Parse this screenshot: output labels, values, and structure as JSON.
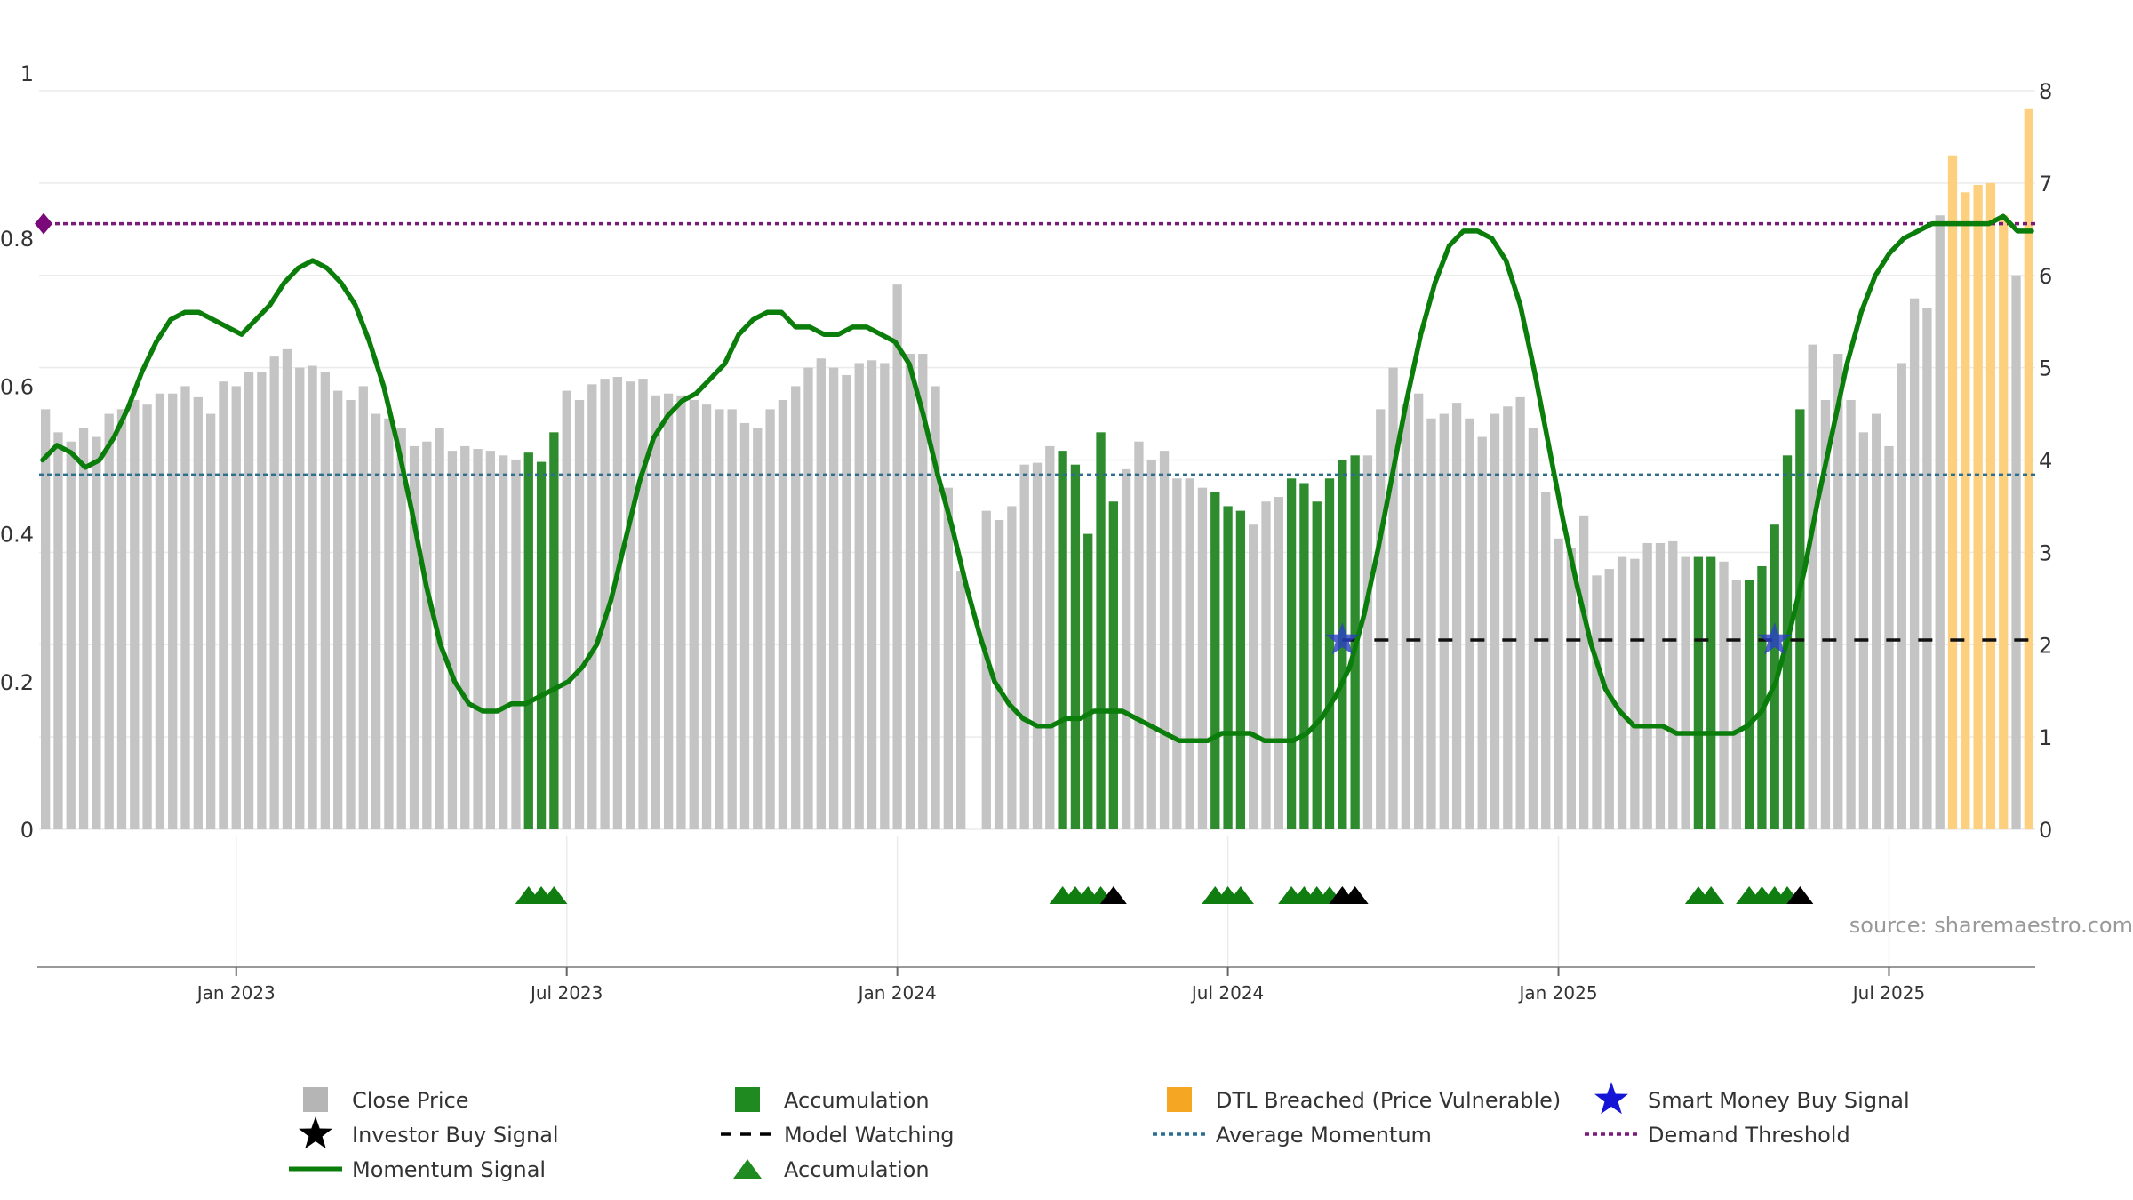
{
  "source_label": "source: sharemaestro.com",
  "chart_data": {
    "type": "bar",
    "left_axis": {
      "ticks": [
        "0",
        "0.2",
        "0.4",
        "0.6",
        "0.8",
        "1"
      ],
      "ylim": [
        0,
        1
      ]
    },
    "right_axis": {
      "ticks": [
        "0",
        "1",
        "2",
        "3",
        "4",
        "5",
        "6",
        "7",
        "8"
      ],
      "ylim": [
        0,
        8
      ]
    },
    "x_ticks": [
      "Jan 2023",
      "Jul 2023",
      "Jan 2024",
      "Jul 2024",
      "Jan 2025",
      "Jul 2025"
    ],
    "x_tick_weeks": [
      15,
      41,
      67,
      93,
      119,
      145
    ],
    "grid": true,
    "colors": {
      "close": "#c4c4c4",
      "accumulation": "#2e8b2e",
      "dtl": "#fcd07e",
      "momentum": "#0a7d0a",
      "average": "#2c6e8f",
      "threshold": "#7a1a7a",
      "smart_money": "#2a3fc4"
    },
    "series": [
      {
        "name": "Close Price",
        "axis": "right",
        "values": [
          4.55,
          4.3,
          4.2,
          4.35,
          4.25,
          4.5,
          4.55,
          4.65,
          4.6,
          4.72,
          4.72,
          4.8,
          4.68,
          4.5,
          4.85,
          4.8,
          4.95,
          4.95,
          5.12,
          5.2,
          5.0,
          5.02,
          4.95,
          4.75,
          4.65,
          4.8,
          4.5,
          4.45,
          4.35,
          4.15,
          4.2,
          4.35,
          4.1,
          4.15,
          4.12,
          4.1,
          4.05,
          4.0,
          4.08,
          3.98,
          4.3,
          4.75,
          4.65,
          4.82,
          4.88,
          4.9,
          4.85,
          4.88,
          4.7,
          4.72,
          4.7,
          4.65,
          4.6,
          4.55,
          4.55,
          4.4,
          4.35,
          4.55,
          4.65,
          4.8,
          5.0,
          5.1,
          5.0,
          4.92,
          5.05,
          5.08,
          5.05,
          5.9,
          5.15,
          5.15,
          4.8,
          3.7,
          2.8,
          0.0,
          3.45,
          3.35,
          3.5,
          3.95,
          3.97,
          4.15,
          4.1,
          3.95,
          3.2,
          4.3,
          3.55,
          3.9,
          4.2,
          4.0,
          4.1,
          3.8,
          3.8,
          3.7,
          3.65,
          3.5,
          3.45,
          3.3,
          3.55,
          3.6,
          3.8,
          3.75,
          3.55,
          3.8,
          4.0,
          4.05,
          4.05,
          4.55,
          5.0,
          4.6,
          4.72,
          4.45,
          4.5,
          4.62,
          4.45,
          4.25,
          4.5,
          4.58,
          4.68,
          4.35,
          3.65,
          3.15,
          3.05,
          3.4,
          2.75,
          2.82,
          2.95,
          2.93,
          3.1,
          3.1,
          3.12,
          2.95,
          2.95,
          2.95,
          2.9,
          2.7,
          2.7,
          2.85,
          3.3,
          4.05,
          4.55,
          5.25,
          4.65,
          5.15,
          4.65,
          4.3,
          4.5,
          4.15,
          5.05,
          5.75,
          5.65,
          6.65,
          7.3,
          6.9,
          6.98,
          7.0,
          6.65,
          6.0,
          7.8
        ]
      }
    ],
    "accumulation_weeks": [
      38,
      39,
      40,
      80,
      81,
      82,
      83,
      84,
      92,
      93,
      94,
      98,
      99,
      100,
      101,
      102,
      103,
      130,
      131,
      134,
      135,
      136,
      137,
      138
    ],
    "dtl_weeks": [
      150,
      151,
      152,
      153,
      154,
      156
    ],
    "momentum_signal": {
      "name": "Momentum Signal",
      "axis": "left",
      "values": [
        0.5,
        0.52,
        0.51,
        0.49,
        0.5,
        0.53,
        0.57,
        0.62,
        0.66,
        0.69,
        0.7,
        0.7,
        0.69,
        0.68,
        0.67,
        0.69,
        0.71,
        0.74,
        0.76,
        0.77,
        0.76,
        0.74,
        0.71,
        0.66,
        0.6,
        0.52,
        0.43,
        0.33,
        0.25,
        0.2,
        0.17,
        0.16,
        0.16,
        0.17,
        0.17,
        0.18,
        0.19,
        0.2,
        0.22,
        0.25,
        0.31,
        0.39,
        0.47,
        0.53,
        0.56,
        0.58,
        0.59,
        0.61,
        0.63,
        0.67,
        0.69,
        0.7,
        0.7,
        0.68,
        0.68,
        0.67,
        0.67,
        0.68,
        0.68,
        0.67,
        0.66,
        0.63,
        0.56,
        0.48,
        0.41,
        0.33,
        0.26,
        0.2,
        0.17,
        0.15,
        0.14,
        0.14,
        0.15,
        0.15,
        0.16,
        0.16,
        0.16,
        0.15,
        0.14,
        0.13,
        0.12,
        0.12,
        0.12,
        0.13,
        0.13,
        0.13,
        0.12,
        0.12,
        0.12,
        0.13,
        0.15,
        0.18,
        0.22,
        0.29,
        0.38,
        0.48,
        0.58,
        0.67,
        0.74,
        0.79,
        0.81,
        0.81,
        0.8,
        0.77,
        0.71,
        0.62,
        0.52,
        0.42,
        0.33,
        0.25,
        0.19,
        0.16,
        0.14,
        0.14,
        0.14,
        0.13,
        0.13,
        0.13,
        0.13,
        0.13,
        0.14,
        0.16,
        0.2,
        0.27,
        0.35,
        0.45,
        0.54,
        0.63,
        0.7,
        0.75,
        0.78,
        0.8,
        0.81,
        0.82,
        0.82,
        0.82,
        0.82,
        0.82,
        0.83,
        0.81,
        0.81
      ]
    },
    "average_momentum": {
      "name": "Average Momentum",
      "axis": "left",
      "value": 0.48
    },
    "demand_threshold": {
      "name": "Demand Threshold",
      "axis": "left",
      "value": 0.82
    },
    "model_watching": {
      "name": "Model Watching",
      "axis": "right",
      "value": 2.05,
      "start_week": 102
    },
    "smart_money_signals": {
      "name": "Smart Money Buy Signal",
      "axis": "right",
      "weeks": [
        102,
        136
      ],
      "value": 2.05
    },
    "accumulation_markers": [
      38,
      39,
      40,
      80,
      81,
      82,
      83,
      92,
      93,
      94,
      98,
      99,
      100,
      101,
      130,
      131,
      134,
      135,
      136,
      137
    ],
    "investor_buy_markers": [
      84,
      102,
      103,
      138
    ],
    "legend": [
      {
        "label": "Close Price",
        "symbol": "square",
        "color": "#b5b5b5"
      },
      {
        "label": "Accumulation",
        "symbol": "square",
        "color": "#1f8a1f"
      },
      {
        "label": "DTL Breached (Price Vulnerable)",
        "symbol": "square",
        "color": "#f5a623"
      },
      {
        "label": "Smart Money Buy Signal",
        "symbol": "star",
        "color": "#1515d6"
      },
      {
        "label": "Investor Buy Signal",
        "symbol": "star",
        "color": "#000000"
      },
      {
        "label": "Model Watching",
        "symbol": "dash",
        "color": "#000000"
      },
      {
        "label": "Average Momentum",
        "symbol": "dot",
        "color": "#2c6e8f"
      },
      {
        "label": "Demand Threshold",
        "symbol": "dot",
        "color": "#7a1a7a"
      },
      {
        "label": "Momentum Signal",
        "symbol": "line",
        "color": "#0a7d0a"
      },
      {
        "label": "Accumulation",
        "symbol": "triangle",
        "color": "#1f8a1f"
      }
    ]
  }
}
